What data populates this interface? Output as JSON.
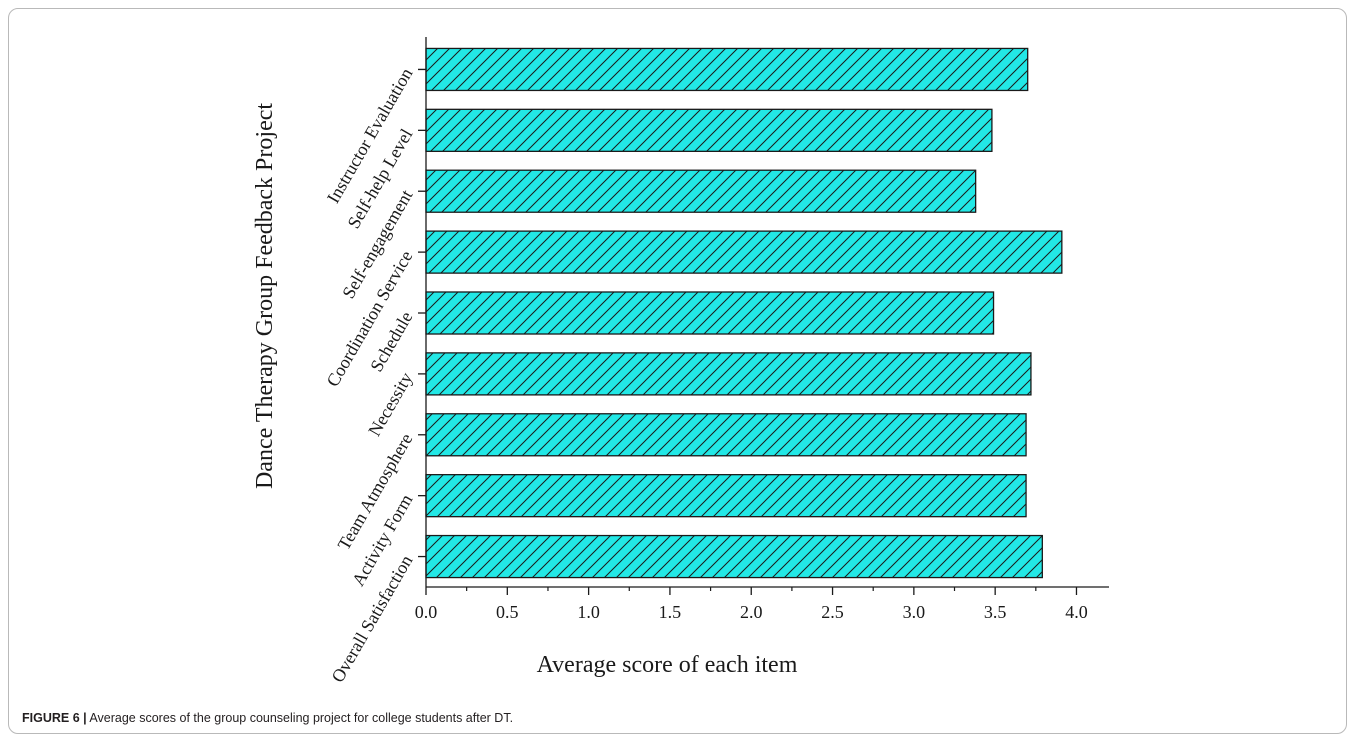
{
  "caption": {
    "label": "FIGURE 6 |",
    "text": "Average scores of the group counseling project for college students after DT."
  },
  "chart_data": {
    "type": "bar",
    "orientation": "horizontal",
    "categories": [
      "Overall Satisfaction",
      "Activity Form",
      "Team Atmosphere",
      "Necessity",
      "Schedule",
      "Coordination Service",
      "Self-engagement",
      "Self-help Level",
      "Instructor Evaluation"
    ],
    "values": [
      3.79,
      3.69,
      3.69,
      3.72,
      3.49,
      3.91,
      3.38,
      3.48,
      3.7
    ],
    "xlabel": "Average score of each item",
    "ylabel": "Dance Therapy Group Feedback Project",
    "xlim": [
      0,
      4.2
    ],
    "xticks": [
      "0.0",
      "0.5",
      "1.0",
      "1.5",
      "2.0",
      "2.5",
      "3.0",
      "3.5",
      "4.0"
    ],
    "bar_color": "#22e8e6",
    "bar_pattern": "diagonal-hatch",
    "grid": false
  }
}
